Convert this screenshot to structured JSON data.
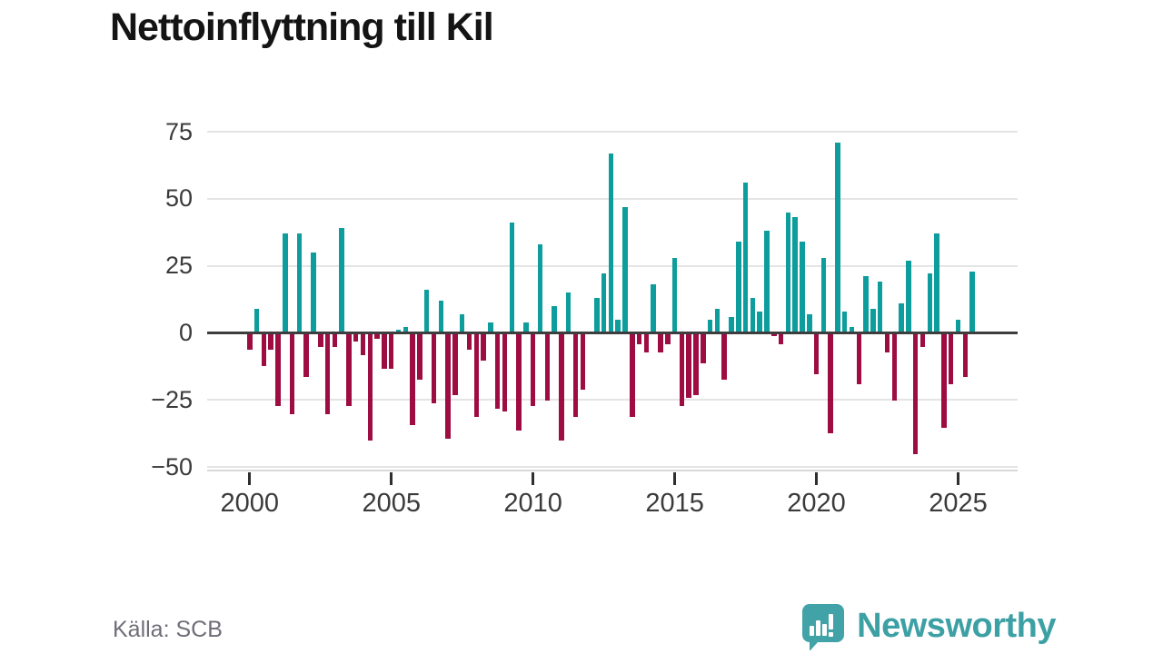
{
  "header": {
    "title": "Nettoinflyttning till Kil"
  },
  "footer": {
    "source_label": "Källa: SCB",
    "brand": "Newsworthy"
  },
  "colors": {
    "positive": "#0d9d9c",
    "negative": "#9e0d42",
    "grid": "#e4e4e4",
    "zero_line": "#3d3d3d",
    "axis_text": "#3b3b3b",
    "title_text": "#141414",
    "source_text": "#6e6e78",
    "brand_teal": "#3da0a4",
    "background": "#ffffff"
  },
  "chart_data": {
    "type": "bar",
    "title": "Nettoinflyttning till Kil",
    "xlabel": "",
    "ylabel": "",
    "periodicity": "quarterly",
    "x_start": 2000.0,
    "x_step": 0.25,
    "values": [
      -6,
      9,
      -12,
      -6,
      -27,
      37,
      -30,
      37,
      -16,
      30,
      -5,
      -30,
      -5,
      39,
      -27,
      -3,
      -8,
      -40,
      -2,
      -13,
      -13,
      1,
      2,
      -34,
      -17,
      16,
      -26,
      12,
      -39,
      -23,
      7,
      -6,
      -31,
      -10,
      4,
      -28,
      -29,
      41,
      -36,
      4,
      -27,
      33,
      -25,
      10,
      -40,
      15,
      -31,
      -21,
      0,
      13,
      22,
      67,
      5,
      47,
      -31,
      -4,
      -7,
      18,
      -7,
      -4,
      28,
      -27,
      -24,
      -23,
      -11,
      5,
      9,
      -17,
      6,
      34,
      56,
      13,
      8,
      38,
      -1,
      -4,
      45,
      43,
      34,
      7,
      -15,
      28,
      -37,
      71,
      8,
      2,
      -19,
      21,
      9,
      19,
      -7,
      -25,
      11,
      27,
      -45,
      -5,
      22,
      37,
      -35,
      -19,
      5,
      -16,
      23
    ],
    "y_ticks": [
      75,
      50,
      25,
      0,
      -25,
      -50
    ],
    "x_ticks": [
      2000,
      2005,
      2010,
      2015,
      2020,
      2025
    ],
    "ylim": [
      -50,
      75
    ],
    "xlim": [
      1998.5,
      2027.1
    ],
    "grid": true,
    "legend": false,
    "bar_color_rule": "teal for positive values, maroon for negative values"
  }
}
